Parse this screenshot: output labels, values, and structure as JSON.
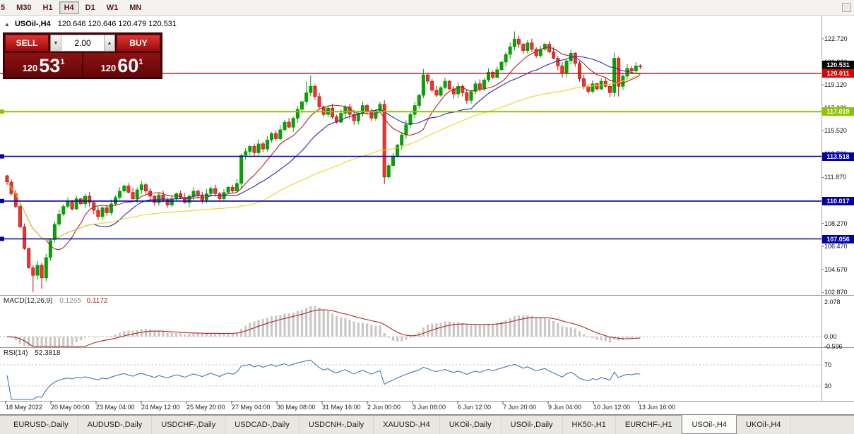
{
  "toolbar": {
    "periods": [
      "5",
      "M30",
      "H1",
      "H4",
      "D1",
      "W1",
      "MN"
    ],
    "active_period": "H4"
  },
  "symbol_header": {
    "symbol": "USOil-,H4",
    "ohlc_text": "120.646 120.646 120.479 120.531"
  },
  "trade_panel": {
    "sell_label": "SELL",
    "buy_label": "BUY",
    "volume": "2.00",
    "sell_price": {
      "big": "120",
      "pips": "53",
      "frac": "1"
    },
    "buy_price": {
      "big": "120",
      "pips": "60",
      "frac": "1"
    }
  },
  "chart_data": {
    "type": "candlestick",
    "title": "USOil-,H4",
    "timeframe": "H4",
    "price_axis": {
      "min": 102.72,
      "max": 123.55,
      "labels": [
        "122.720",
        "120.920",
        "119.120",
        "117.320",
        "115.520",
        "113.720",
        "111.870",
        "110.070",
        "108.270",
        "106.470",
        "104.670",
        "102.870"
      ]
    },
    "closes": [
      111.5,
      110.6,
      109.6,
      108.0,
      106.3,
      104.8,
      104.2,
      105.0,
      104.0,
      105.6,
      107.0,
      108.2,
      109.0,
      109.6,
      110.0,
      109.4,
      110.2,
      109.8,
      110.4,
      109.9,
      109.3,
      108.8,
      109.5,
      109.1,
      109.8,
      110.3,
      110.8,
      111.2,
      110.7,
      110.2,
      110.9,
      111.3,
      110.8,
      110.4,
      109.9,
      110.5,
      110.1,
      109.7,
      110.2,
      110.6,
      110.3,
      109.9,
      110.4,
      110.8,
      110.5,
      110.1,
      110.6,
      111.0,
      110.6,
      110.2,
      110.7,
      111.1,
      110.8,
      111.4,
      113.6,
      113.9,
      114.3,
      113.8,
      114.5,
      114.1,
      114.8,
      115.3,
      114.9,
      115.6,
      116.2,
      115.8,
      116.5,
      117.2,
      117.8,
      118.5,
      119.0,
      118.2,
      117.4,
      116.8,
      117.3,
      116.6,
      116.2,
      116.9,
      117.4,
      116.8,
      116.3,
      116.9,
      117.5,
      117.0,
      116.5,
      117.1,
      117.6,
      111.9,
      112.8,
      113.5,
      114.4,
      115.2,
      116.0,
      116.8,
      117.5,
      118.3,
      119.9,
      119.4,
      118.7,
      118.3,
      118.9,
      119.4,
      118.8,
      118.4,
      119.0,
      118.5,
      117.9,
      118.6,
      119.2,
      118.8,
      119.5,
      120.1,
      119.7,
      120.3,
      120.9,
      121.5,
      122.1,
      122.7,
      122.3,
      121.8,
      122.4,
      121.9,
      121.4,
      121.9,
      122.3,
      121.7,
      121.2,
      120.6,
      120.0,
      121.0,
      121.6,
      120.8,
      119.6,
      119.0,
      118.6,
      119.2,
      118.8,
      119.4,
      119.0,
      118.5,
      121.2,
      119.0,
      119.8,
      120.4,
      120.2,
      120.6,
      120.531
    ],
    "wick_overrides": [
      [
        6,
        null,
        102.9
      ],
      [
        8,
        null,
        103.15
      ],
      [
        69,
        119.4,
        null
      ],
      [
        70,
        119.85,
        null
      ],
      [
        87,
        null,
        111.35
      ],
      [
        96,
        120.35,
        null
      ],
      [
        117,
        123.3,
        null
      ],
      [
        140,
        121.65,
        null
      ],
      [
        141,
        null,
        118.2
      ]
    ],
    "candle_colors": {
      "up": "#00A000",
      "up_fill": "#0aa005",
      "down": "#B01510",
      "down_fill": "#E8352E"
    },
    "moving_averages": [
      {
        "period": 10,
        "color": "#B22222"
      },
      {
        "period": 21,
        "color": "#2828B4"
      },
      {
        "period": 55,
        "color": "#EFD51F"
      }
    ],
    "hlines": [
      {
        "price": 120.011,
        "color": "#DD0000",
        "label": "120.011",
        "width": 1.3,
        "handle": false
      },
      {
        "price": 117.019,
        "color": "#8DC400",
        "label": "117.019",
        "width": 2,
        "handle": true
      },
      {
        "price": 113.518,
        "color": "#0000A8",
        "label": "113.518",
        "width": 1.6,
        "handle": true
      },
      {
        "price": 110.017,
        "color": "#0000A8",
        "label": "110.017",
        "width": 1.6,
        "handle": true
      },
      {
        "price": 107.056,
        "color": "#0000A8",
        "label": "107.056",
        "width": 1.6,
        "handle": true
      }
    ],
    "bid_tag": {
      "price": 120.531,
      "label": "120.531",
      "color": "#000000"
    },
    "x_labels": [
      "18 May 2022",
      "20 May 00:00",
      "23 May 04:00",
      "24 May 12:00",
      "25 May 20:00",
      "27 May 04:00",
      "30 May 08:00",
      "31 May 16:00",
      "2 Jun 00:00",
      "3 Jun 08:00",
      "6 Jun 12:00",
      "7 Jun 20:00",
      "9 Jun 04:00",
      "10 Jun 12:00",
      "13 Jun 16:00"
    ],
    "indicators": {
      "macd": {
        "title": "MACD(12,26,9)",
        "value_main": "0.1265",
        "value_signal": "0.1172",
        "axis_labels": [
          "2.078",
          "0.00",
          "-0.596"
        ],
        "max": 2.078,
        "min": -0.596,
        "bar_color": "#C8C8C8",
        "signal_color": "#B22222"
      },
      "rsi": {
        "title": "RSI(14)",
        "value": "52.3818",
        "levels": [
          "70",
          "30"
        ],
        "line_color": "#3C78B4"
      }
    }
  },
  "tabs": {
    "items": [
      "EURUSD-,Daily",
      "AUDUSD-,Daily",
      "USDCHF-,Daily",
      "USDCAD-,Daily",
      "USDCNH-,Daily",
      "XAUUSD-,H4",
      "UKOil-,Daily",
      "USOil-,Daily",
      "HK50-,H1",
      "EURCHF-,H1",
      "USOil-,H4",
      "UKOil-,H4"
    ],
    "active": "USOil-,H4"
  }
}
